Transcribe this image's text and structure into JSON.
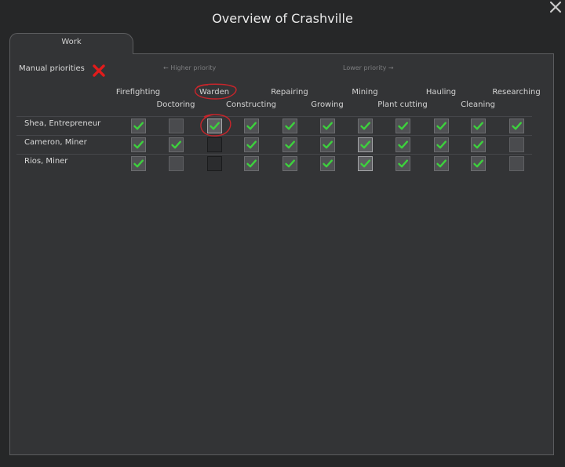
{
  "window": {
    "title": "Overview of Crashville",
    "close_icon": "close-icon"
  },
  "tabs": [
    {
      "label": "Work",
      "active": true
    }
  ],
  "header": {
    "manual_priorities_label": "Manual priorities",
    "manual_priorities_enabled": false,
    "higher_priority_label": "← Higher priority",
    "lower_priority_label": "Lower priority →"
  },
  "work_types": [
    "Firefighting",
    "Doctoring",
    "Warden",
    "Constructing",
    "Repairing",
    "Growing",
    "Mining",
    "Plant cutting",
    "Hauling",
    "Cleaning",
    "Researching"
  ],
  "pawns": [
    {
      "name": "Shea, Entrepreneur",
      "work": [
        "checked",
        "unchecked",
        "checked",
        "checked",
        "checked",
        "checked",
        "checked",
        "checked",
        "checked",
        "checked",
        "checked"
      ]
    },
    {
      "name": "Cameron, Miner",
      "work": [
        "checked",
        "checked",
        "empty",
        "checked",
        "checked",
        "checked",
        "checked",
        "checked",
        "checked",
        "checked",
        "unchecked"
      ]
    },
    {
      "name": "Rios, Miner",
      "work": [
        "checked",
        "unchecked",
        "empty",
        "checked",
        "checked",
        "checked",
        "checked",
        "checked",
        "checked",
        "checked",
        "unchecked"
      ]
    }
  ],
  "colors": {
    "check": "#3dd13d",
    "cross": "#e21b1b",
    "annotation": "#c8252b",
    "background": "#262728",
    "panel": "#333436"
  }
}
